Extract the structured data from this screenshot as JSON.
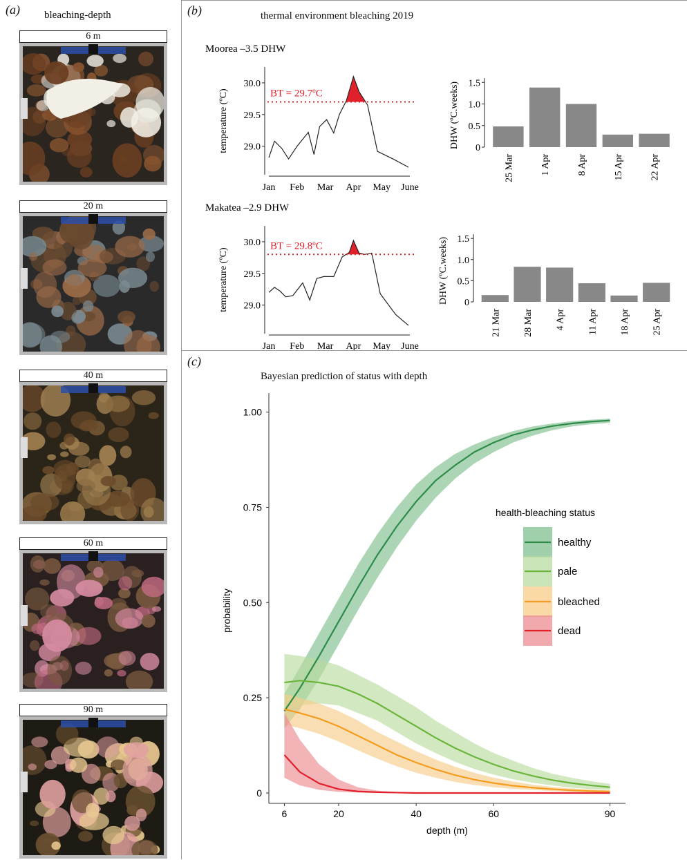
{
  "panel_a": {
    "label": "(a)",
    "title": "bleaching-depth",
    "photos": [
      {
        "depth_label": "6 m",
        "palette": [
          "#2b2520",
          "#6b3f22",
          "#8a5530",
          "#f2efe6"
        ]
      },
      {
        "depth_label": "20 m",
        "palette": [
          "#2a2a2a",
          "#6a4a30",
          "#7a8a90",
          "#9a6a48"
        ]
      },
      {
        "depth_label": "40 m",
        "palette": [
          "#2b2418",
          "#6a4a2a",
          "#8a6a40",
          "#a08050"
        ]
      },
      {
        "depth_label": "60 m",
        "palette": [
          "#2a2020",
          "#7a5a40",
          "#c06a80",
          "#d48aa0"
        ]
      },
      {
        "depth_label": "90 m",
        "palette": [
          "#1e1a14",
          "#6a5030",
          "#e0a0a0",
          "#e8c890"
        ]
      }
    ]
  },
  "panel_b": {
    "label": "(b)",
    "title": "thermal environment bleaching 2019",
    "sites": [
      {
        "name": "Moorea –3.5 DHW",
        "bt_label": "BT = 29.7ºC",
        "bt": 29.7,
        "ylabel": "temperature (ºC)",
        "yticks": [
          "29.0",
          "29.5",
          "30.0"
        ],
        "ylim": [
          28.55,
          30.25
        ],
        "months": [
          "Jan",
          "Feb",
          "Mar",
          "Apr",
          "May",
          "June"
        ],
        "temps": [
          28.82,
          29.08,
          28.97,
          28.8,
          29.0,
          29.22,
          28.87,
          29.31,
          29.42,
          29.21,
          29.5,
          29.72,
          30.1,
          29.86,
          29.65,
          28.92,
          28.8,
          28.67
        ],
        "t_index": [
          0,
          0.2,
          0.45,
          0.7,
          1.0,
          1.4,
          1.6,
          1.8,
          2.05,
          2.3,
          2.5,
          2.75,
          3.0,
          3.2,
          3.5,
          3.85,
          4.4,
          4.95
        ],
        "dhw": {
          "type": "bar",
          "ylabel": "DHW (ºC.weeks)",
          "yticks": [
            "0",
            "0.5",
            "1.0",
            "1.5"
          ],
          "ylim": [
            0,
            1.6
          ],
          "categories": [
            "25 Mar",
            "1 Apr",
            "8 Apr",
            "15 Apr",
            "22 Apr"
          ],
          "values": [
            0.48,
            1.38,
            1.0,
            0.29,
            0.31
          ]
        }
      },
      {
        "name": "Makatea –2.9 DHW",
        "bt_label": "BT = 29.8ºC",
        "bt": 29.8,
        "ylabel": "temperature (ºC)",
        "yticks": [
          "29.0",
          "29.5",
          "30.0"
        ],
        "ylim": [
          28.55,
          30.25
        ],
        "months": [
          "Jan",
          "Feb",
          "Mar",
          "Apr",
          "May",
          "June"
        ],
        "temps": [
          29.2,
          29.28,
          29.22,
          29.13,
          29.15,
          29.35,
          29.08,
          29.42,
          29.45,
          29.45,
          29.76,
          29.83,
          30.02,
          29.82,
          29.8,
          29.82,
          29.18,
          28.85,
          28.68
        ],
        "t_index": [
          0,
          0.2,
          0.4,
          0.6,
          0.85,
          1.2,
          1.45,
          1.7,
          1.95,
          2.3,
          2.6,
          2.85,
          3.0,
          3.2,
          3.4,
          3.65,
          3.95,
          4.5,
          4.95
        ],
        "dhw": {
          "type": "bar",
          "ylabel": "DHW (ºC.weeks)",
          "yticks": [
            "0",
            "0.5",
            "1.0",
            "1.5"
          ],
          "ylim": [
            0,
            1.6
          ],
          "categories": [
            "21 Mar",
            "28 Mar",
            "4 Apr",
            "11 Apr",
            "18 Apr",
            "25 Apr"
          ],
          "values": [
            0.16,
            0.83,
            0.81,
            0.44,
            0.15,
            0.45
          ]
        }
      }
    ]
  },
  "panel_c": {
    "label": "(c)",
    "title": "Bayesian prediction of status with depth",
    "chart_data": {
      "type": "line",
      "xlabel": "depth (m)",
      "ylabel": "probability",
      "xticks": [
        "6",
        "20",
        "40",
        "60",
        "90"
      ],
      "yticks": [
        "0",
        "0.25",
        "0.50",
        "0.75",
        "1.00"
      ],
      "xlim": [
        2,
        94
      ],
      "ylim": [
        -0.02,
        1.05
      ],
      "legend_title": "health-bleaching status",
      "legend_position": "right",
      "x": [
        6,
        10,
        15,
        20,
        25,
        30,
        35,
        40,
        45,
        50,
        55,
        60,
        65,
        70,
        75,
        80,
        85,
        90
      ],
      "series": [
        {
          "name": "healthy",
          "color": "#2e8b4a",
          "band": "#7fbf8f",
          "values": [
            0.215,
            0.275,
            0.36,
            0.45,
            0.54,
            0.625,
            0.7,
            0.765,
            0.82,
            0.86,
            0.895,
            0.92,
            0.94,
            0.953,
            0.963,
            0.97,
            0.975,
            0.978
          ],
          "upper": [
            0.26,
            0.33,
            0.42,
            0.51,
            0.6,
            0.68,
            0.75,
            0.81,
            0.855,
            0.89,
            0.915,
            0.935,
            0.95,
            0.962,
            0.97,
            0.976,
            0.98,
            0.983
          ],
          "lower": [
            0.17,
            0.22,
            0.3,
            0.39,
            0.48,
            0.565,
            0.645,
            0.715,
            0.775,
            0.825,
            0.865,
            0.895,
            0.92,
            0.938,
            0.952,
            0.962,
            0.968,
            0.972
          ]
        },
        {
          "name": "pale",
          "color": "#6ab43a",
          "band": "#b8dca0",
          "values": [
            0.29,
            0.295,
            0.29,
            0.28,
            0.26,
            0.235,
            0.205,
            0.175,
            0.145,
            0.118,
            0.095,
            0.075,
            0.058,
            0.045,
            0.034,
            0.026,
            0.02,
            0.015
          ],
          "upper": [
            0.365,
            0.36,
            0.35,
            0.335,
            0.31,
            0.285,
            0.255,
            0.225,
            0.19,
            0.16,
            0.13,
            0.105,
            0.085,
            0.066,
            0.051,
            0.04,
            0.031,
            0.024
          ],
          "lower": [
            0.215,
            0.23,
            0.235,
            0.23,
            0.21,
            0.19,
            0.16,
            0.13,
            0.105,
            0.082,
            0.063,
            0.048,
            0.036,
            0.027,
            0.02,
            0.014,
            0.01,
            0.008
          ]
        },
        {
          "name": "bleached",
          "color": "#f39c1e",
          "band": "#f8cc8a",
          "values": [
            0.22,
            0.21,
            0.195,
            0.175,
            0.15,
            0.125,
            0.1,
            0.08,
            0.062,
            0.047,
            0.035,
            0.026,
            0.019,
            0.014,
            0.01,
            0.007,
            0.005,
            0.004
          ],
          "upper": [
            0.26,
            0.25,
            0.235,
            0.215,
            0.19,
            0.16,
            0.135,
            0.11,
            0.088,
            0.069,
            0.053,
            0.04,
            0.03,
            0.022,
            0.016,
            0.012,
            0.009,
            0.006
          ],
          "lower": [
            0.18,
            0.17,
            0.155,
            0.135,
            0.112,
            0.09,
            0.07,
            0.053,
            0.04,
            0.029,
            0.021,
            0.015,
            0.011,
            0.008,
            0.005,
            0.003,
            0.002,
            0.001
          ]
        },
        {
          "name": "dead",
          "color": "#e0202a",
          "band": "#ec8c92",
          "values": [
            0.1,
            0.055,
            0.025,
            0.01,
            0.004,
            0.002,
            0.001,
            0.0,
            0.0,
            0.0,
            0.0,
            0.0,
            0.0,
            0.0,
            0.0,
            0.0,
            0.0,
            0.0
          ],
          "upper": [
            0.21,
            0.14,
            0.075,
            0.035,
            0.015,
            0.006,
            0.003,
            0.001,
            0.0,
            0.0,
            0.0,
            0.0,
            0.0,
            0.0,
            0.0,
            0.0,
            0.0,
            0.0
          ],
          "lower": [
            0.04,
            0.02,
            0.008,
            0.003,
            0.001,
            0.0,
            0.0,
            0.0,
            0.0,
            0.0,
            0.0,
            0.0,
            0.0,
            0.0,
            0.0,
            0.0,
            0.0,
            0.0
          ]
        }
      ]
    }
  }
}
